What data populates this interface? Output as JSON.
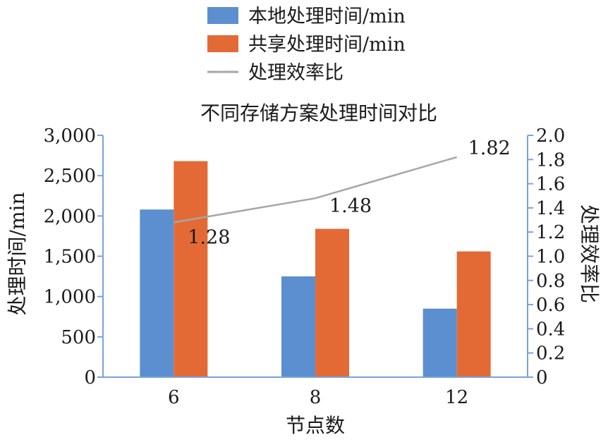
{
  "chart_data": {
    "type": "bar",
    "title": "不同存储方案处理时间对比",
    "xlabel": "节点数",
    "ylabel": "处理时间/min",
    "y2label": "处理效率比",
    "categories": [
      "6",
      "8",
      "12"
    ],
    "series": [
      {
        "name": "本地处理时间/min",
        "kind": "bar",
        "axis": "left",
        "color": "#5b8fd0",
        "values": [
          2080,
          1250,
          850
        ]
      },
      {
        "name": "共享处理时间/min",
        "kind": "bar",
        "axis": "left",
        "color": "#e36a35",
        "values": [
          2680,
          1840,
          1560
        ]
      },
      {
        "name": "处理效率比",
        "kind": "line",
        "axis": "right",
        "color": "#a6a6a6",
        "values": [
          1.28,
          1.48,
          1.82
        ],
        "labels": [
          "1.28",
          "1.48",
          "1.82"
        ]
      }
    ],
    "ylim": [
      0,
      3000
    ],
    "y_ticks": [
      0,
      500,
      1000,
      1500,
      2000,
      2500,
      3000
    ],
    "y_tick_labels": [
      "0",
      "500",
      "1,000",
      "1,500",
      "2,000",
      "2,500",
      "3,000"
    ],
    "y2lim": [
      0,
      2.0
    ],
    "y2_ticks": [
      0,
      0.2,
      0.4,
      0.6,
      0.8,
      1.0,
      1.2,
      1.4,
      1.6,
      1.8,
      2.0
    ],
    "y2_tick_labels": [
      "0",
      "0.2",
      "0.4",
      "0.6",
      "0.8",
      "1.0",
      "1.2",
      "1.4",
      "1.6",
      "1.8",
      "2.0"
    ],
    "grid": false,
    "legend_position": "top"
  }
}
